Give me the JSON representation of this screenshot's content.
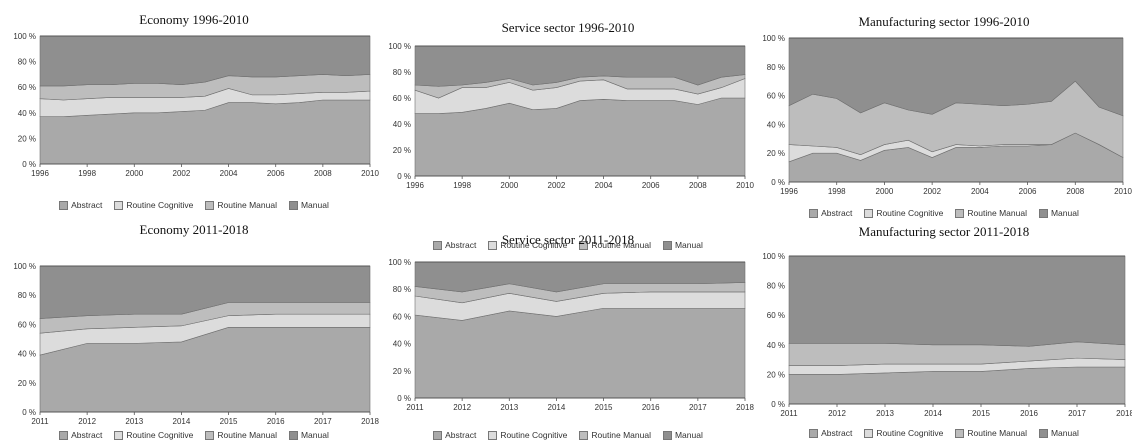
{
  "colors": {
    "Abstract": "#a9a9a9",
    "Routine Cognitive": "#dcdcdc",
    "Routine Manual": "#bdbdbd",
    "Manual": "#8f8f8f"
  },
  "chart_data": [
    {
      "type": "area",
      "title": "Economy 1996-2010",
      "x": [
        1996,
        1997,
        1998,
        1999,
        2000,
        2001,
        2002,
        2003,
        2004,
        2005,
        2006,
        2007,
        2008,
        2009,
        2010
      ],
      "xticks": [
        "1996",
        "1998",
        "2000",
        "2002",
        "2004",
        "2006",
        "2008",
        "2010"
      ],
      "yticks": [
        "0 %",
        "20 %",
        "40 %",
        "60 %",
        "80 %",
        "100 %"
      ],
      "ylim": [
        0,
        100
      ],
      "stacked": true,
      "series": [
        {
          "name": "Abstract",
          "values": [
            37,
            37,
            38,
            39,
            40,
            40,
            41,
            42,
            48,
            48,
            47,
            48,
            50,
            50,
            50
          ]
        },
        {
          "name": "Routine Cognitive",
          "values": [
            14,
            13,
            13,
            13,
            12,
            12,
            11,
            11,
            11,
            6,
            7,
            7,
            6,
            6,
            7
          ]
        },
        {
          "name": "Routine Manual",
          "values": [
            10,
            11,
            11,
            10,
            11,
            11,
            10,
            11,
            10,
            14,
            14,
            14,
            14,
            13,
            13
          ]
        },
        {
          "name": "Manual",
          "values": [
            39,
            39,
            38,
            38,
            37,
            37,
            38,
            36,
            31,
            32,
            32,
            31,
            30,
            31,
            30
          ]
        }
      ],
      "legend": [
        "Abstract",
        "Routine Cognitive",
        "Routine Manual",
        "Manual"
      ]
    },
    {
      "type": "area",
      "title": "Service sector 1996-2010",
      "x": [
        1996,
        1997,
        1998,
        1999,
        2000,
        2001,
        2002,
        2003,
        2004,
        2005,
        2006,
        2007,
        2008,
        2009,
        2010
      ],
      "xticks": [
        "1996",
        "1998",
        "2000",
        "2002",
        "2004",
        "2006",
        "2008",
        "2010"
      ],
      "yticks": [
        "0 %",
        "20 %",
        "40 %",
        "60 %",
        "80 %",
        "100 %"
      ],
      "ylim": [
        0,
        100
      ],
      "stacked": true,
      "series": [
        {
          "name": "Abstract",
          "values": [
            48,
            48,
            49,
            52,
            56,
            51,
            52,
            58,
            59,
            58,
            58,
            58,
            55,
            60,
            60
          ]
        },
        {
          "name": "Routine Cognitive",
          "values": [
            18,
            12,
            19,
            16,
            16,
            15,
            16,
            15,
            15,
            9,
            9,
            9,
            8,
            8,
            15
          ]
        },
        {
          "name": "Routine Manual",
          "values": [
            4,
            9,
            2,
            4,
            3,
            4,
            4,
            3,
            3,
            9,
            9,
            9,
            7,
            8,
            3
          ]
        },
        {
          "name": "Manual",
          "values": [
            30,
            31,
            30,
            28,
            25,
            30,
            28,
            24,
            23,
            24,
            24,
            24,
            30,
            24,
            22
          ]
        }
      ],
      "legend": [
        "Abstract",
        "Routine Cognitive",
        "Routine Manual",
        "Manual"
      ]
    },
    {
      "type": "area",
      "title": "Manufacturing sector 1996-2010",
      "x": [
        1996,
        1997,
        1998,
        1999,
        2000,
        2001,
        2002,
        2003,
        2004,
        2005,
        2006,
        2007,
        2008,
        2009,
        2010
      ],
      "xticks": [
        "1996",
        "1998",
        "2000",
        "2002",
        "2004",
        "2006",
        "2008",
        "2010"
      ],
      "yticks": [
        "0 %",
        "20 %",
        "40 %",
        "60 %",
        "80 %",
        "100 %"
      ],
      "ylim": [
        0,
        100
      ],
      "stacked": true,
      "series": [
        {
          "name": "Abstract",
          "values": [
            14,
            20,
            20,
            15,
            22,
            24,
            17,
            24,
            24,
            25,
            25,
            26,
            34,
            26,
            17
          ]
        },
        {
          "name": "Routine Cognitive",
          "values": [
            12,
            5,
            4,
            4,
            4,
            5,
            4,
            2,
            1,
            1,
            1,
            0,
            0,
            0,
            0
          ]
        },
        {
          "name": "Routine Manual",
          "values": [
            27,
            36,
            34,
            29,
            29,
            21,
            26,
            29,
            29,
            27,
            28,
            30,
            36,
            26,
            29
          ]
        },
        {
          "name": "Manual",
          "values": [
            47,
            39,
            42,
            52,
            45,
            50,
            53,
            45,
            46,
            47,
            46,
            44,
            30,
            48,
            54
          ]
        }
      ],
      "legend": [
        "Abstract",
        "Routine Cognitive",
        "Routine Manual",
        "Manual"
      ]
    },
    {
      "type": "area",
      "title": "Economy 2011-2018",
      "x": [
        2011,
        2012,
        2013,
        2014,
        2015,
        2016,
        2017,
        2018
      ],
      "xticks": [
        "2011",
        "2012",
        "2013",
        "2014",
        "2015",
        "2016",
        "2017",
        "2018"
      ],
      "yticks": [
        "0 %",
        "20 %",
        "40 %",
        "60 %",
        "80 %",
        "100 %"
      ],
      "ylim": [
        0,
        100
      ],
      "stacked": true,
      "series": [
        {
          "name": "Abstract",
          "values": [
            39,
            47,
            47,
            48,
            58,
            58,
            58,
            58
          ]
        },
        {
          "name": "Routine Cognitive",
          "values": [
            15,
            10,
            11,
            11,
            8,
            9,
            9,
            9
          ]
        },
        {
          "name": "Routine Manual",
          "values": [
            10,
            9,
            9,
            8,
            9,
            8,
            8,
            8
          ]
        },
        {
          "name": "Manual",
          "values": [
            36,
            34,
            33,
            33,
            25,
            25,
            25,
            25
          ]
        }
      ],
      "legend": [
        "Abstract",
        "Routine Cognitive",
        "Routine Manual",
        "Manual"
      ]
    },
    {
      "type": "area",
      "title": "Service sector 2011-2018",
      "x": [
        2011,
        2012,
        2013,
        2014,
        2015,
        2016,
        2017,
        2018
      ],
      "xticks": [
        "2011",
        "2012",
        "2013",
        "2014",
        "2015",
        "2016",
        "2017",
        "2018"
      ],
      "yticks": [
        "0 %",
        "20 %",
        "40 %",
        "60 %",
        "80 %",
        "100 %"
      ],
      "ylim": [
        0,
        100
      ],
      "stacked": true,
      "series": [
        {
          "name": "Abstract",
          "values": [
            61,
            57,
            64,
            60,
            66,
            66,
            66,
            66
          ]
        },
        {
          "name": "Routine Cognitive",
          "values": [
            14,
            13,
            13,
            11,
            11,
            12,
            12,
            12
          ]
        },
        {
          "name": "Routine Manual",
          "values": [
            7,
            8,
            7,
            7,
            7,
            6,
            6,
            7
          ]
        },
        {
          "name": "Manual",
          "values": [
            18,
            22,
            16,
            22,
            16,
            16,
            16,
            15
          ]
        }
      ],
      "legend": [
        "Abstract",
        "Routine Cognitive",
        "Routine Manual",
        "Manual"
      ]
    },
    {
      "type": "area",
      "title": "Manufacturing sector 2011-2018",
      "x": [
        2011,
        2012,
        2013,
        2014,
        2015,
        2016,
        2017,
        2018
      ],
      "xticks": [
        "2011",
        "2012",
        "2013",
        "2014",
        "2015",
        "2016",
        "2017",
        "2018"
      ],
      "yticks": [
        "0 %",
        "20 %",
        "40 %",
        "60 %",
        "80 %",
        "100 %"
      ],
      "ylim": [
        0,
        100
      ],
      "stacked": true,
      "series": [
        {
          "name": "Abstract",
          "values": [
            20,
            20,
            21,
            22,
            22,
            24,
            25,
            25
          ]
        },
        {
          "name": "Routine Cognitive",
          "values": [
            6,
            6,
            6,
            5,
            5,
            5,
            6,
            5
          ]
        },
        {
          "name": "Routine Manual",
          "values": [
            15,
            15,
            14,
            13,
            13,
            10,
            11,
            10
          ]
        },
        {
          "name": "Manual",
          "values": [
            59,
            59,
            59,
            60,
            60,
            61,
            58,
            60
          ]
        }
      ],
      "legend": [
        "Abstract",
        "Routine Cognitive",
        "Routine Manual",
        "Manual"
      ]
    }
  ]
}
